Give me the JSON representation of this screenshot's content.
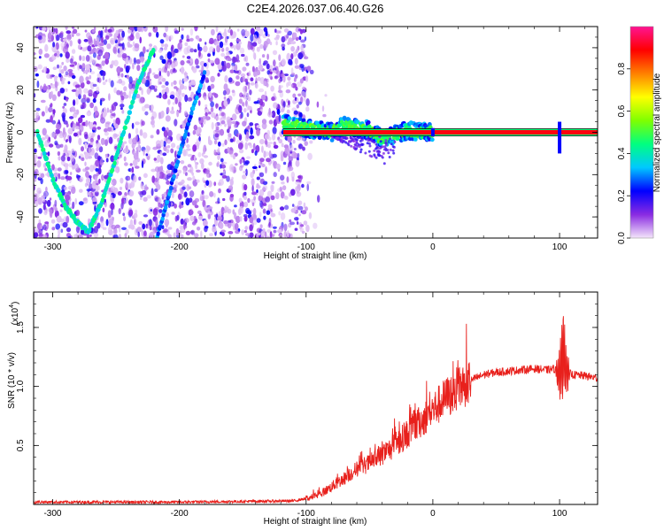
{
  "title": "C2E4.2026.037.06.40.G26",
  "chart_data": [
    {
      "type": "heatmap",
      "name": "spectrogram",
      "xlabel": "Height of straight line (km)",
      "ylabel": "Frequency (Hz)",
      "xlim": [
        -315,
        130
      ],
      "ylim": [
        -50,
        50
      ],
      "xticks": [
        -300,
        -200,
        -100,
        0,
        100
      ],
      "xtick_labels": [
        "-300",
        "-200",
        "-100",
        "0",
        "100"
      ],
      "yticks": [
        -40,
        -20,
        0,
        20,
        40
      ],
      "ytick_labels": [
        "-40",
        "-20",
        "0",
        "20",
        "40"
      ],
      "colorbar": {
        "label": "Normalized spectral amplitude",
        "range": [
          0,
          1
        ],
        "ticks": [
          0.0,
          0.2,
          0.4,
          0.6,
          0.8
        ],
        "tick_labels": [
          "0.0",
          "0.2",
          "0.4",
          "0.6",
          "0.8"
        ],
        "colors": [
          "#f4e6fa",
          "#8a2be2",
          "#0000ff",
          "#00c8ff",
          "#00ff80",
          "#7fff00",
          "#ffff00",
          "#ff8000",
          "#ff0000",
          "#ff1493"
        ]
      },
      "noise_region_x": [
        -315,
        -100
      ],
      "noise_region_y": [
        -50,
        50
      ],
      "ridges": [
        {
          "name": "descending-ridge",
          "x": [
            -312,
            -300,
            -290,
            -280,
            -272
          ],
          "y": [
            0,
            -22,
            -35,
            -43,
            -47
          ]
        },
        {
          "name": "ascending-ridge",
          "x": [
            -272,
            -262,
            -252,
            -244,
            -238,
            -232,
            -226,
            -220
          ],
          "y": [
            -47,
            -34,
            -16,
            0,
            12,
            24,
            32,
            40
          ]
        },
        {
          "name": "faint-ridge",
          "x": [
            -218,
            -212,
            -205,
            -198,
            -190,
            -180
          ],
          "y": [
            -50,
            -38,
            -22,
            -6,
            10,
            28
          ]
        }
      ],
      "carrier": {
        "frequency": 0,
        "x_start": -118,
        "x_end": 130
      },
      "carrier_band": {
        "x": [
          -118,
          -100,
          -90,
          -80,
          -70,
          -60,
          -50,
          -40,
          -30,
          -20,
          -10,
          0
        ],
        "y": [
          4,
          2,
          1,
          0,
          3,
          2,
          1,
          -3,
          -1,
          1,
          0,
          0
        ]
      },
      "spikes": [
        {
          "x": 0,
          "y_range": [
            -2,
            2
          ]
        },
        {
          "x": 100,
          "y_range": [
            -10,
            5
          ]
        }
      ]
    },
    {
      "type": "line",
      "name": "snr",
      "xlabel": "Height of straight line (km)",
      "ylabel": "SNR (10 * v/v)",
      "y_multiplier": "(x10",
      "y_multiplier_exp": "4",
      "y_multiplier_close": ")",
      "color": "#e8201c",
      "xlim": [
        -315,
        130
      ],
      "ylim": [
        0,
        1.8
      ],
      "xticks": [
        -300,
        -200,
        -100,
        0,
        100
      ],
      "xtick_labels": [
        "-300",
        "-200",
        "-100",
        "0",
        "100"
      ],
      "yticks": [
        0.5,
        1.0,
        1.5
      ],
      "ytick_labels": [
        "0.5",
        "1.0",
        "1.5"
      ],
      "series": [
        {
          "name": "SNR",
          "x": [
            -315,
            -200,
            -110,
            -100,
            -90,
            -80,
            -70,
            -60,
            -50,
            -40,
            -30,
            -20,
            -10,
            0,
            10,
            20,
            30,
            40,
            50,
            60,
            70,
            80,
            90,
            96,
            100,
            103,
            106,
            110,
            120,
            130
          ],
          "y": [
            0.02,
            0.02,
            0.03,
            0.05,
            0.08,
            0.15,
            0.22,
            0.3,
            0.35,
            0.42,
            0.5,
            0.6,
            0.7,
            0.8,
            0.9,
            0.98,
            1.05,
            1.1,
            1.12,
            1.13,
            1.14,
            1.15,
            1.14,
            1.15,
            1.1,
            1.3,
            1.12,
            1.1,
            1.09,
            1.07
          ]
        }
      ]
    }
  ]
}
